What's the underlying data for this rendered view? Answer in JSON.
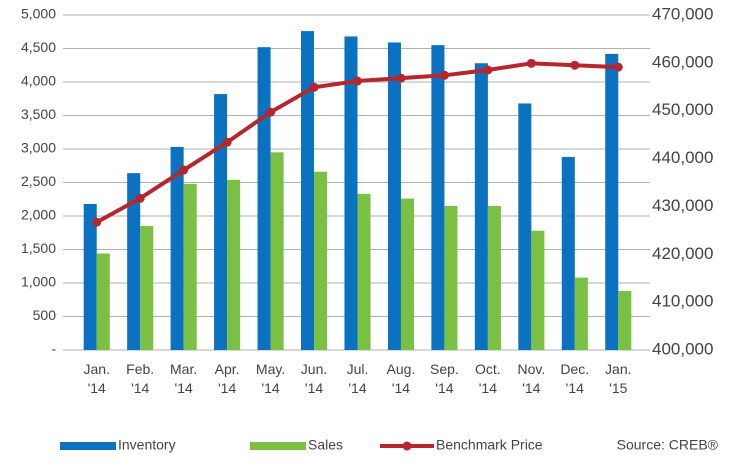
{
  "chart_data": {
    "type": "bar_line",
    "categories": [
      "Jan. '14",
      "Feb. '14",
      "Mar. '14",
      "Apr. '14",
      "May. '14",
      "Jun. '14",
      "Jul. '14",
      "Aug. '14",
      "Sep. '14",
      "Oct. '14",
      "Nov. '14",
      "Dec. '14",
      "Jan. '15"
    ],
    "series": [
      {
        "name": "Inventory",
        "color": "#0a72c0",
        "values": [
          2180,
          2640,
          3030,
          3820,
          4520,
          4760,
          4680,
          4590,
          4550,
          4280,
          3680,
          2880,
          4420
        ]
      },
      {
        "name": "Sales",
        "color": "#7ac143",
        "values": [
          1440,
          1850,
          2480,
          2540,
          2950,
          2660,
          2330,
          2260,
          2150,
          2150,
          1780,
          1080,
          880
        ]
      },
      {
        "name": "Benchmark Price",
        "color": "#b5272d",
        "axis": "y2",
        "values": [
          426700,
          431700,
          437600,
          443400,
          449700,
          454900,
          456200,
          456800,
          457400,
          458500,
          459900,
          459500,
          459100
        ]
      }
    ],
    "ylim": [
      0,
      5000
    ],
    "yticks": [
      {
        "value": 0,
        "label": "-"
      },
      500,
      {
        "value": 1000,
        "label": "1,000"
      },
      {
        "value": 1500,
        "label": "1,500"
      },
      {
        "value": 2000,
        "label": "2,000"
      },
      {
        "value": 2500,
        "label": "2,500"
      },
      {
        "value": 3000,
        "label": "3,000"
      },
      {
        "value": 3500,
        "label": "3,500"
      },
      {
        "value": 4000,
        "label": "4,000"
      },
      {
        "value": 4500,
        "label": "4,500"
      },
      {
        "value": 5000,
        "label": "5,000"
      }
    ],
    "y2lim": [
      400000,
      470000
    ],
    "y2ticks": [
      {
        "value": 400000,
        "label": "400,000"
      },
      {
        "value": 410000,
        "label": "410,000"
      },
      {
        "value": 420000,
        "label": "420,000"
      },
      {
        "value": 430000,
        "label": "430,000"
      },
      {
        "value": 440000,
        "label": "440,000"
      },
      {
        "value": 450000,
        "label": "450,000"
      },
      {
        "value": 460000,
        "label": "460,000"
      },
      {
        "value": 470000,
        "label": "470,000"
      }
    ],
    "y2_color": "#b5272d",
    "grid": true,
    "legend": "bottom",
    "source": "Source: CREB®"
  }
}
